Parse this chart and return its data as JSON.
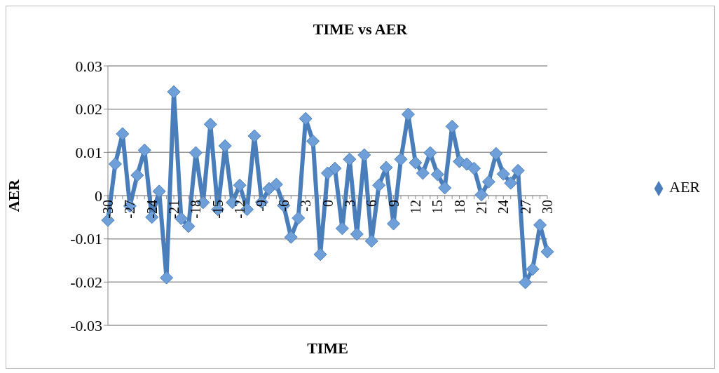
{
  "chart_data": {
    "type": "line",
    "title": "TIME vs AER",
    "xlabel": "TIME",
    "ylabel": "AER",
    "categories": [
      "-30",
      null,
      null,
      "-27",
      null,
      null,
      "-24",
      null,
      null,
      "-21",
      null,
      null,
      "-18",
      null,
      null,
      "-15",
      null,
      null,
      "-12",
      null,
      null,
      "-9",
      null,
      null,
      "-6",
      null,
      null,
      "-3",
      null,
      null,
      "0",
      null,
      null,
      "3",
      null,
      null,
      "6",
      null,
      null,
      "9",
      null,
      null,
      "12",
      null,
      null,
      "15",
      null,
      null,
      "18",
      null,
      null,
      "21",
      null,
      null,
      "24",
      null,
      null,
      "27",
      null,
      null,
      "30"
    ],
    "series": [
      {
        "name": "AER",
        "color": "#4a7ebb",
        "values": [
          -0.0057,
          0.0073,
          0.0143,
          -0.0024,
          0.0047,
          0.0105,
          -0.005,
          0.001,
          -0.019,
          0.024,
          -0.0053,
          -0.0071,
          0.0099,
          -0.0016,
          0.0165,
          -0.0032,
          0.0115,
          -0.0016,
          0.0024,
          -0.0032,
          0.0138,
          -0.0015,
          0.0016,
          0.0026,
          -0.0023,
          -0.0096,
          -0.0052,
          0.0178,
          0.0126,
          -0.0136,
          0.0052,
          0.0063,
          -0.0076,
          0.0084,
          -0.0089,
          0.0094,
          -0.0105,
          0.0024,
          0.0065,
          -0.0065,
          0.0084,
          0.0188,
          0.0076,
          0.0052,
          0.0099,
          0.0049,
          0.0018,
          0.016,
          0.0079,
          0.0073,
          0.0063,
          0.0002,
          0.0032,
          0.0097,
          0.005,
          0.0029,
          0.0058,
          -0.0201,
          -0.017,
          -0.0068,
          -0.013
        ]
      }
    ],
    "ylim": [
      -0.03,
      0.03
    ],
    "yticks": [
      -0.03,
      -0.02,
      -0.01,
      0,
      0.01,
      0.02,
      0.03
    ],
    "grid": "y",
    "legend": "right",
    "marker": "diamond",
    "line_style": "solid"
  }
}
